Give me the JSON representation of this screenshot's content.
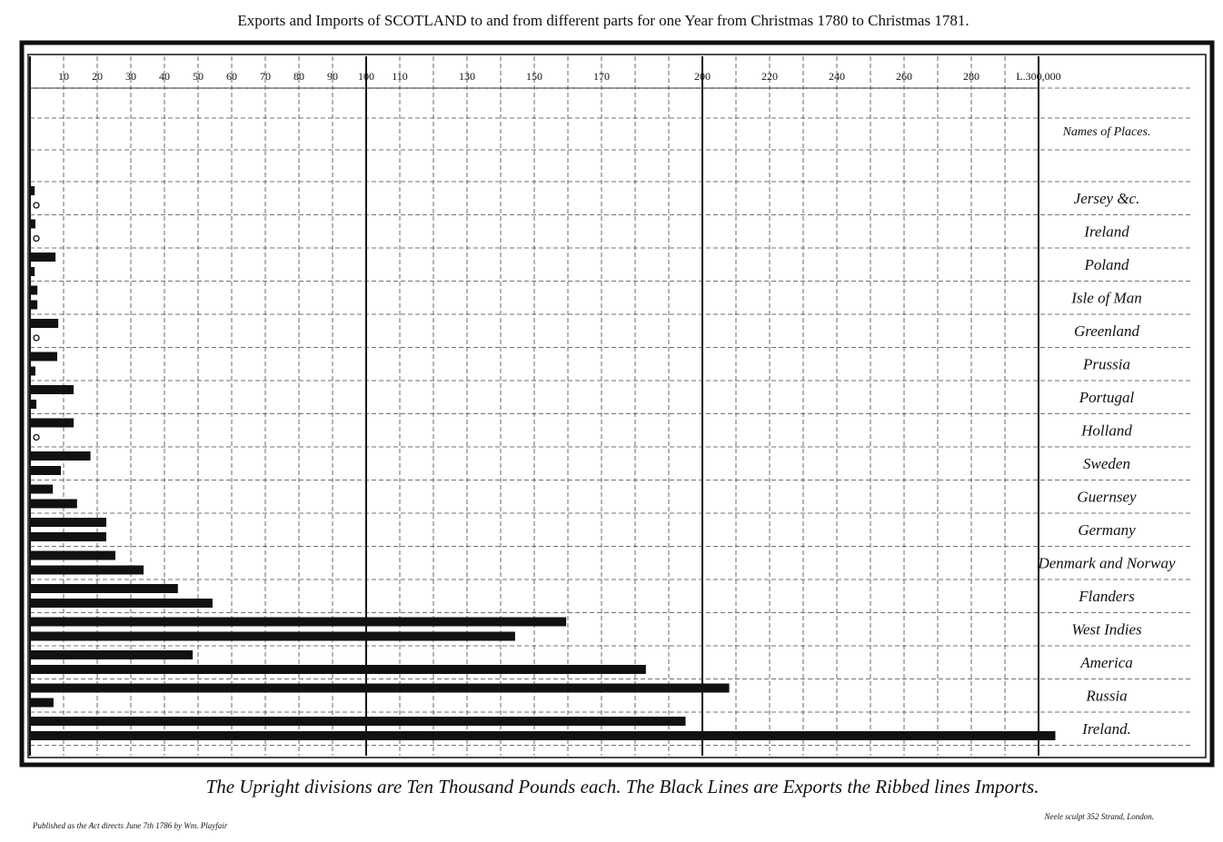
{
  "chart_data": {
    "type": "bar",
    "orientation": "horizontal",
    "title": "Exports and Imports of SCOTLAND to and from different parts for one Year from Christmas 1780 to Christmas 1781.",
    "column_header": "Names of Places.",
    "caption": "The Upright divisions are Ten Thousand Pounds each. The Black Lines are Exports the Ribbed lines Imports.",
    "imprint": "Published as the Act directs June 7th 1786 by Wm. Playfair",
    "engraver": "Neele sculpt 352 Strand, London.",
    "categories": [
      "Jersey &c.",
      "Ireland",
      "Poland",
      "Isle of Man",
      "Greenland",
      "Prussia",
      "Portugal",
      "Holland",
      "Sweden",
      "Guernsey",
      "Germany",
      "Denmark and Norway",
      "Flanders",
      "West Indies",
      "America",
      "Russia",
      "Ireland."
    ],
    "series": [
      {
        "color": "#111111",
        "values": [
          1.4,
          1.6,
          7.6,
          2.2,
          8.4,
          8.1,
          13,
          13,
          18,
          6.8,
          22.7,
          25.4,
          44,
          159.5,
          48.4,
          208,
          195
        ]
      },
      {
        "color": "#111111",
        "values": [
          0,
          0,
          1.4,
          2.2,
          0,
          1.6,
          1.9,
          0,
          9.2,
          14,
          22.7,
          33.8,
          54.3,
          144.3,
          183.2,
          7,
          305
        ]
      }
    ],
    "xlim": [
      0,
      300
    ],
    "xticks": [
      10,
      20,
      30,
      40,
      50,
      60,
      70,
      80,
      90,
      100,
      110,
      130,
      150,
      170,
      200,
      220,
      240,
      260,
      280,
      {
        "value": 300,
        "label": "L.300,000"
      }
    ],
    "xgrid": [
      0,
      10,
      20,
      30,
      40,
      50,
      60,
      70,
      80,
      90,
      100,
      110,
      120,
      130,
      140,
      150,
      160,
      170,
      180,
      190,
      200,
      210,
      220,
      230,
      240,
      250,
      260,
      270,
      280,
      290,
      300
    ],
    "grid": true
  }
}
